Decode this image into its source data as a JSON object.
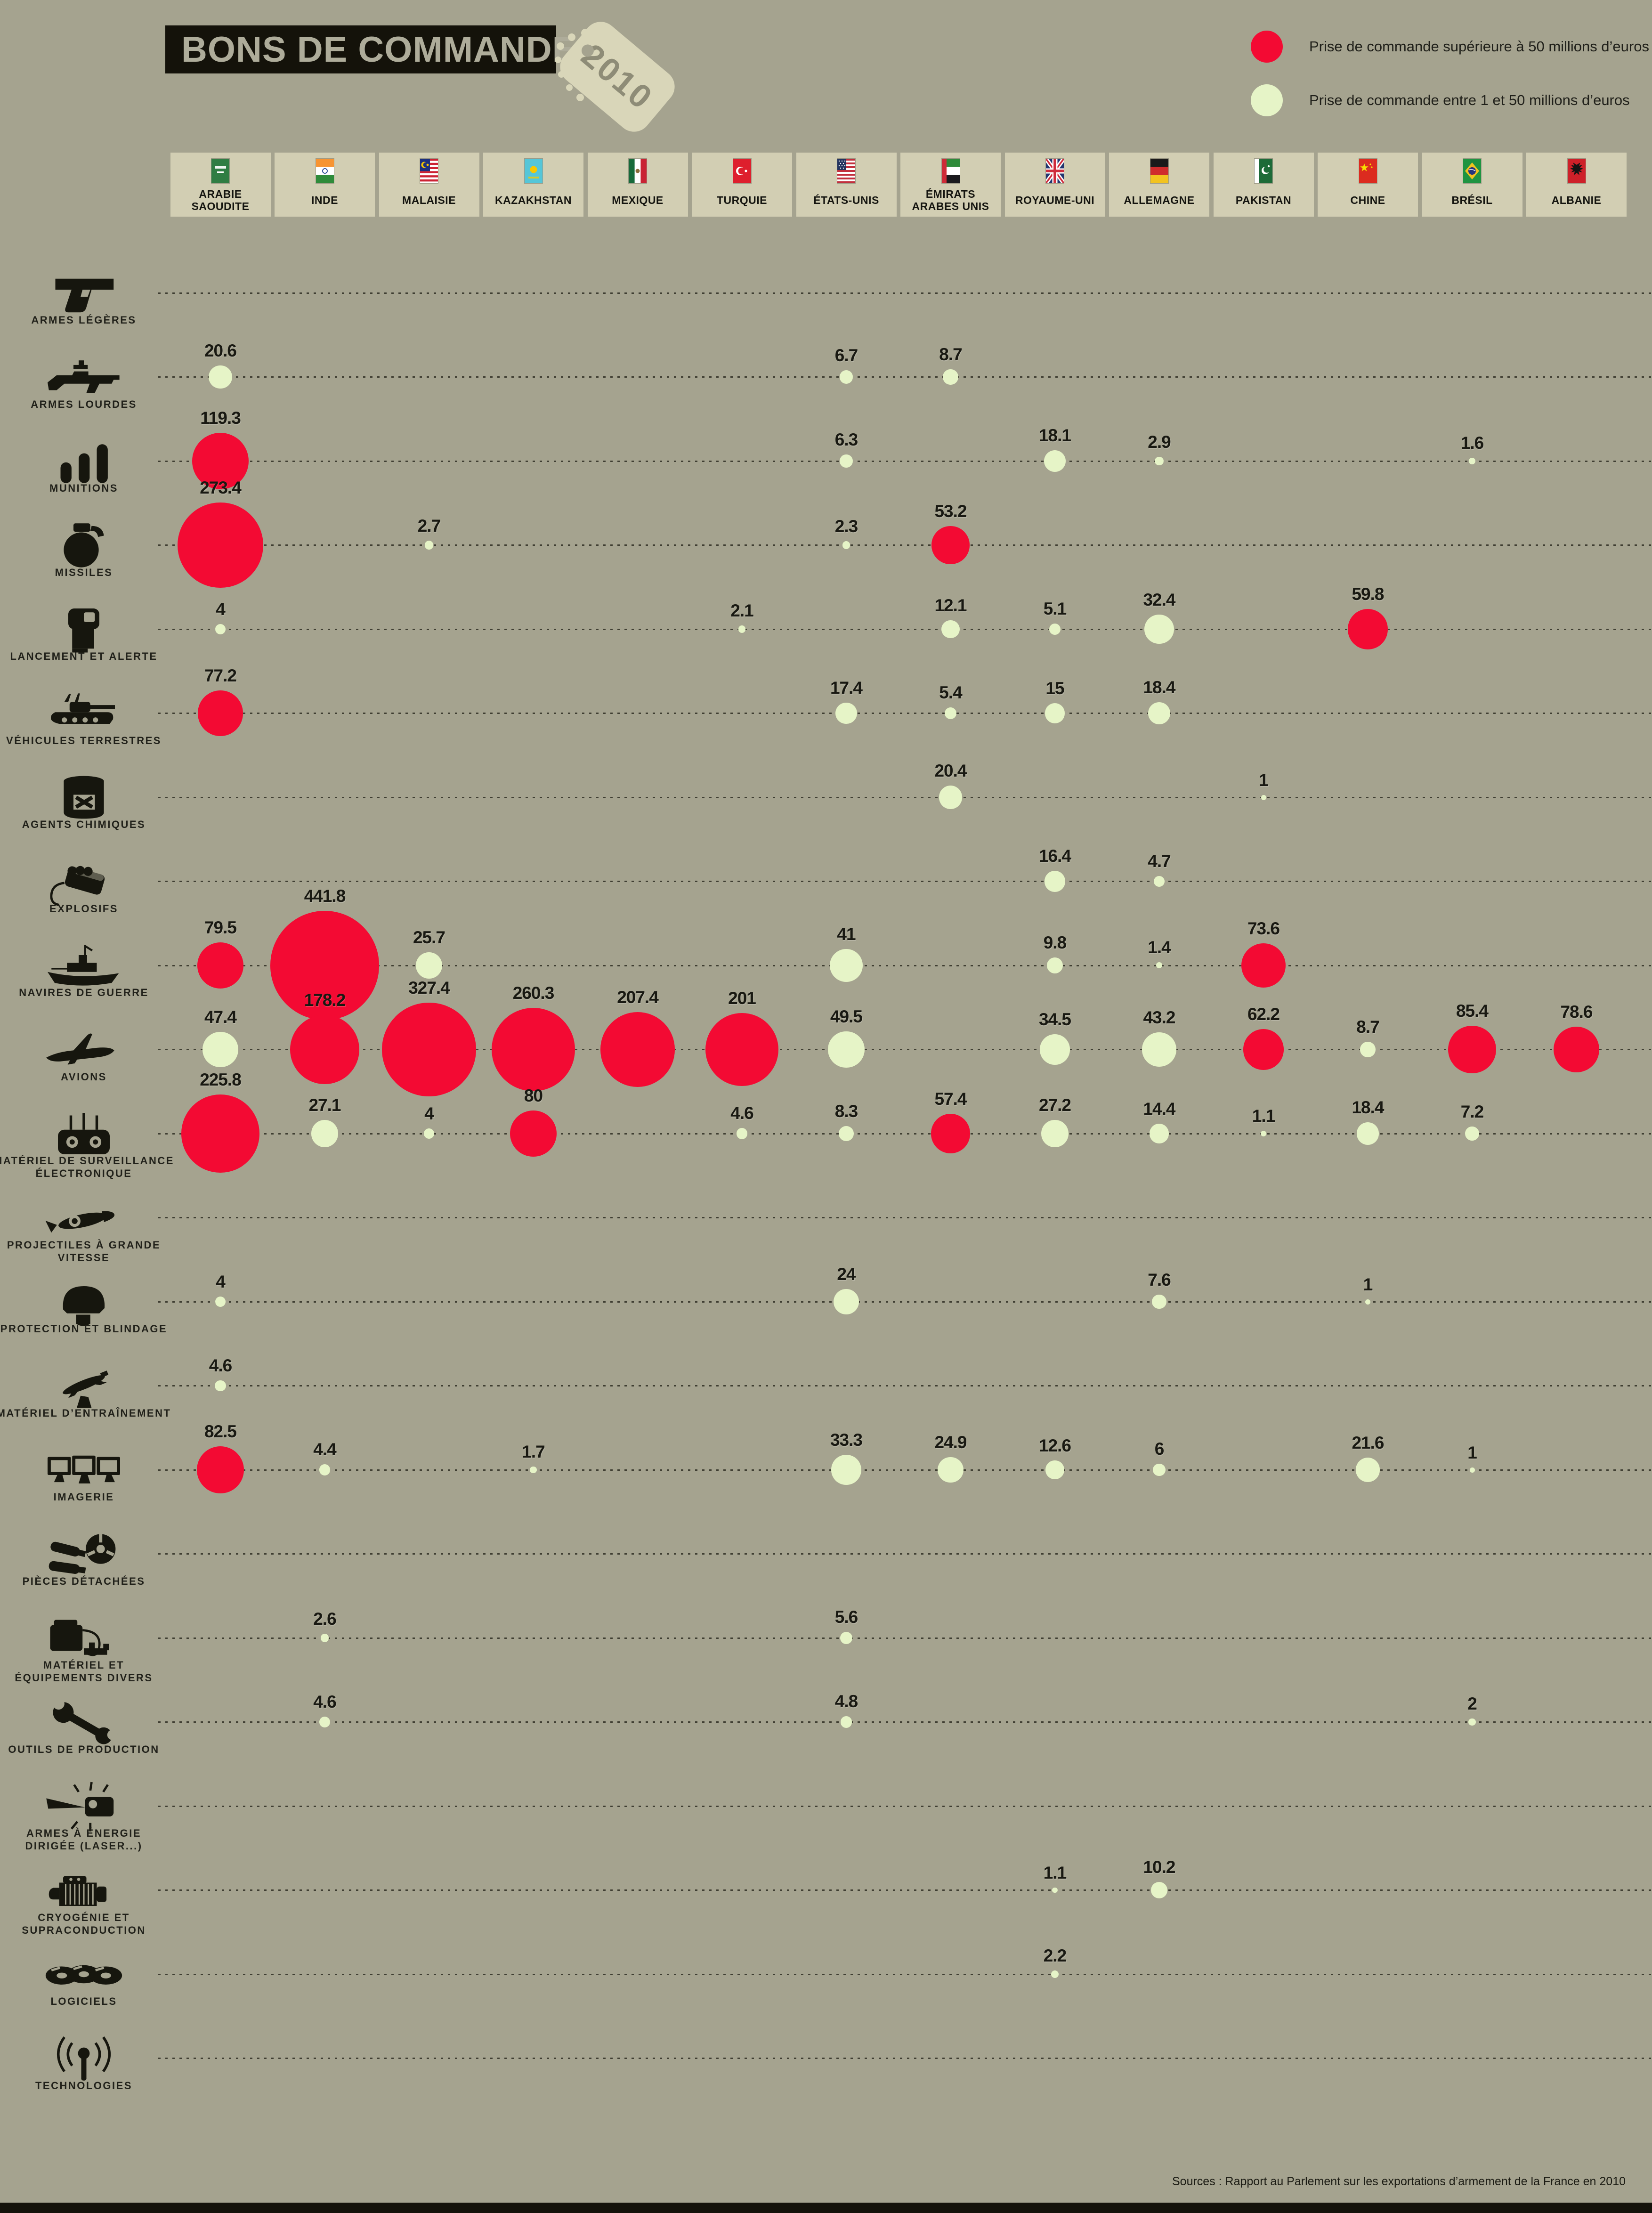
{
  "title": "BONS DE COMMANDE",
  "year_tag": "2010",
  "legend": {
    "items": [
      {
        "id": "red",
        "label": "Prise de commande supérieure à 50 millions d’euros"
      },
      {
        "id": "cream",
        "label": "Prise de commande entre 1 et 50 millions d’euros"
      }
    ]
  },
  "source": "Sources : Rapport au Parlement sur les exportations d’armement de la France en 2010",
  "colors": {
    "background": "#a5a38f",
    "red": "#f30a33",
    "cream": "#e6f4c7",
    "header_block": "#d2ceb3",
    "ink": "#16160e"
  },
  "countries": [
    {
      "name": "ARABIE SAOUDITE",
      "flag": "flag-arabie-saoudite"
    },
    {
      "name": "INDE",
      "flag": "flag-inde"
    },
    {
      "name": "MALAISIE",
      "flag": "flag-malaisie"
    },
    {
      "name": "KAZAKHSTAN",
      "flag": "flag-kazakhstan"
    },
    {
      "name": "MEXIQUE",
      "flag": "flag-mexique"
    },
    {
      "name": "TURQUIE",
      "flag": "flag-turquie"
    },
    {
      "name": "ÉTATS-UNIS",
      "flag": "flag-etats-unis"
    },
    {
      "name": "ÉMIRATS\nARABES UNIS",
      "flag": "flag-emirats-arabes-unis"
    },
    {
      "name": "ROYAUME-UNI",
      "flag": "flag-royaume-uni"
    },
    {
      "name": "ALLEMAGNE",
      "flag": "flag-allemagne"
    },
    {
      "name": "PAKISTAN",
      "flag": "flag-pakistan"
    },
    {
      "name": "CHINE",
      "flag": "flag-chine"
    },
    {
      "name": "BRÉSIL",
      "flag": "flag-bresil"
    },
    {
      "name": "ALBANIE",
      "flag": "flag-albanie"
    }
  ],
  "categories": [
    {
      "label": "ARMES LÉGÈRES",
      "icon": "pistol-icon"
    },
    {
      "label": "ARMES LOURDES",
      "icon": "rifle-icon"
    },
    {
      "label": "MUNITIONS",
      "icon": "bullets-icon"
    },
    {
      "label": "MISSILES",
      "icon": "grenade-icon"
    },
    {
      "label": "LANCEMENT ET ALERTE",
      "icon": "launch-alert-icon"
    },
    {
      "label": "VÉHICULES TERRESTRES",
      "icon": "tank-icon"
    },
    {
      "label": "AGENTS CHIMIQUES",
      "icon": "barrel-icon"
    },
    {
      "label": "EXPLOSIFS",
      "icon": "dynamite-icon"
    },
    {
      "label": "NAVIRES DE GUERRE",
      "icon": "warship-icon"
    },
    {
      "label": "AVIONS",
      "icon": "jet-icon"
    },
    {
      "label": "MATÉRIEL DE SURVEILLANCE\nÉLECTRONIQUE",
      "icon": "rc-controller-icon"
    },
    {
      "label": "PROJECTILES À GRANDE VITESSE",
      "icon": "hv-projectile-icon"
    },
    {
      "label": "PROTECTION ET BLINDAGE",
      "icon": "helmet-icon"
    },
    {
      "label": "MATÉRIEL D’ENTRAÎNEMENT",
      "icon": "training-aircraft-icon"
    },
    {
      "label": "IMAGERIE",
      "icon": "monitors-icon"
    },
    {
      "label": "PIÈCES DÉTACHÉES",
      "icon": "spare-parts-icon"
    },
    {
      "label": "MATÉRIEL ET\nÉQUIPEMENTS DIVERS",
      "icon": "equipment-icon"
    },
    {
      "label": "OUTILS DE PRODUCTION",
      "icon": "wrench-icon"
    },
    {
      "label": "ARMES À ÉNERGIE\nDIRIGÉE (LASER...)",
      "icon": "laser-icon"
    },
    {
      "label": "CRYOGÉNIE ET\nSUPRACONDUCTION",
      "icon": "motor-icon"
    },
    {
      "label": "LOGICIELS",
      "icon": "discs-icon"
    },
    {
      "label": "TECHNOLOGIES",
      "icon": "antenna-icon"
    }
  ],
  "chart_data": {
    "type": "bubble_matrix",
    "unit": "millions d’euros",
    "x_axis": "countries (index ci)",
    "y_axis": "categories (index ri)",
    "size_rule": "bubble area proportional to value",
    "color_rule": "red if value > 50, pale green if 1 to 50",
    "legend_threshold": 50,
    "cells": [
      {
        "ri": 1,
        "ci": 0,
        "v": 20.6
      },
      {
        "ri": 1,
        "ci": 6,
        "v": 6.7
      },
      {
        "ri": 1,
        "ci": 7,
        "v": 8.7
      },
      {
        "ri": 2,
        "ci": 0,
        "v": 119.3
      },
      {
        "ri": 2,
        "ci": 6,
        "v": 6.3
      },
      {
        "ri": 2,
        "ci": 8,
        "v": 18.1
      },
      {
        "ri": 2,
        "ci": 9,
        "v": 2.9
      },
      {
        "ri": 2,
        "ci": 12,
        "v": 1.6
      },
      {
        "ri": 3,
        "ci": 0,
        "v": 273.4
      },
      {
        "ri": 3,
        "ci": 2,
        "v": 2.7
      },
      {
        "ri": 3,
        "ci": 6,
        "v": 2.3
      },
      {
        "ri": 3,
        "ci": 7,
        "v": 53.2
      },
      {
        "ri": 4,
        "ci": 0,
        "v": 4
      },
      {
        "ri": 4,
        "ci": 5,
        "v": 2.1
      },
      {
        "ri": 4,
        "ci": 7,
        "v": 12.1
      },
      {
        "ri": 4,
        "ci": 8,
        "v": 5.1
      },
      {
        "ri": 4,
        "ci": 9,
        "v": 32.4
      },
      {
        "ri": 4,
        "ci": 11,
        "v": 59.8
      },
      {
        "ri": 5,
        "ci": 0,
        "v": 77.2
      },
      {
        "ri": 5,
        "ci": 6,
        "v": 17.4
      },
      {
        "ri": 5,
        "ci": 7,
        "v": 5.4
      },
      {
        "ri": 5,
        "ci": 8,
        "v": 15
      },
      {
        "ri": 5,
        "ci": 9,
        "v": 18.4
      },
      {
        "ri": 6,
        "ci": 7,
        "v": 20.4
      },
      {
        "ri": 6,
        "ci": 10,
        "v": 1
      },
      {
        "ri": 7,
        "ci": 8,
        "v": 16.4
      },
      {
        "ri": 7,
        "ci": 9,
        "v": 4.7
      },
      {
        "ri": 8,
        "ci": 0,
        "v": 79.5
      },
      {
        "ri": 8,
        "ci": 1,
        "v": 441.8
      },
      {
        "ri": 8,
        "ci": 2,
        "v": 25.7
      },
      {
        "ri": 8,
        "ci": 6,
        "v": 41
      },
      {
        "ri": 8,
        "ci": 8,
        "v": 9.8
      },
      {
        "ri": 8,
        "ci": 9,
        "v": 1.4
      },
      {
        "ri": 8,
        "ci": 10,
        "v": 73.6
      },
      {
        "ri": 9,
        "ci": 0,
        "v": 47.4
      },
      {
        "ri": 9,
        "ci": 1,
        "v": 178.2
      },
      {
        "ri": 9,
        "ci": 2,
        "v": 327.4
      },
      {
        "ri": 9,
        "ci": 3,
        "v": 260.3
      },
      {
        "ri": 9,
        "ci": 4,
        "v": 207.4
      },
      {
        "ri": 9,
        "ci": 5,
        "v": 201
      },
      {
        "ri": 9,
        "ci": 6,
        "v": 49.5
      },
      {
        "ri": 9,
        "ci": 8,
        "v": 34.5
      },
      {
        "ri": 9,
        "ci": 9,
        "v": 43.2
      },
      {
        "ri": 9,
        "ci": 10,
        "v": 62.2
      },
      {
        "ri": 9,
        "ci": 11,
        "v": 8.7
      },
      {
        "ri": 9,
        "ci": 12,
        "v": 85.4
      },
      {
        "ri": 9,
        "ci": 13,
        "v": 78.6
      },
      {
        "ri": 10,
        "ci": 0,
        "v": 225.8
      },
      {
        "ri": 10,
        "ci": 1,
        "v": 27.1
      },
      {
        "ri": 10,
        "ci": 2,
        "v": 4
      },
      {
        "ri": 10,
        "ci": 3,
        "v": 80
      },
      {
        "ri": 10,
        "ci": 5,
        "v": 4.6
      },
      {
        "ri": 10,
        "ci": 6,
        "v": 8.3
      },
      {
        "ri": 10,
        "ci": 7,
        "v": 57.4
      },
      {
        "ri": 10,
        "ci": 8,
        "v": 27.2
      },
      {
        "ri": 10,
        "ci": 9,
        "v": 14.4
      },
      {
        "ri": 10,
        "ci": 10,
        "v": 1.1
      },
      {
        "ri": 10,
        "ci": 11,
        "v": 18.4
      },
      {
        "ri": 10,
        "ci": 12,
        "v": 7.2
      },
      {
        "ri": 12,
        "ci": 0,
        "v": 4
      },
      {
        "ri": 12,
        "ci": 6,
        "v": 24
      },
      {
        "ri": 12,
        "ci": 9,
        "v": 7.6
      },
      {
        "ri": 12,
        "ci": 11,
        "v": 1
      },
      {
        "ri": 13,
        "ci": 0,
        "v": 4.6
      },
      {
        "ri": 14,
        "ci": 0,
        "v": 82.5
      },
      {
        "ri": 14,
        "ci": 1,
        "v": 4.4
      },
      {
        "ri": 14,
        "ci": 3,
        "v": 1.7
      },
      {
        "ri": 14,
        "ci": 6,
        "v": 33.3
      },
      {
        "ri": 14,
        "ci": 7,
        "v": 24.9
      },
      {
        "ri": 14,
        "ci": 8,
        "v": 12.6
      },
      {
        "ri": 14,
        "ci": 9,
        "v": 6
      },
      {
        "ri": 14,
        "ci": 11,
        "v": 21.6
      },
      {
        "ri": 14,
        "ci": 12,
        "v": 1
      },
      {
        "ri": 16,
        "ci": 1,
        "v": 2.6
      },
      {
        "ri": 16,
        "ci": 6,
        "v": 5.6
      },
      {
        "ri": 17,
        "ci": 1,
        "v": 4.6
      },
      {
        "ri": 17,
        "ci": 6,
        "v": 4.8
      },
      {
        "ri": 17,
        "ci": 12,
        "v": 2
      },
      {
        "ri": 19,
        "ci": 8,
        "v": 1.1
      },
      {
        "ri": 19,
        "ci": 9,
        "v": 10.2
      },
      {
        "ri": 20,
        "ci": 8,
        "v": 2.2
      }
    ]
  }
}
